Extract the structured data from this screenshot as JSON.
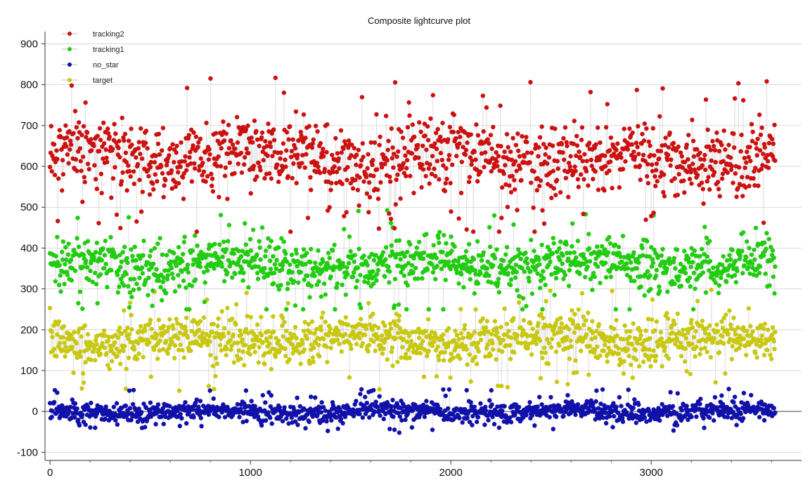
{
  "chart_data": {
    "type": "scatter",
    "title": "Composite lightcurve plot",
    "xlabel": "",
    "ylabel": "",
    "xlim": [
      -25,
      3750
    ],
    "ylim": [
      -120,
      930
    ],
    "x_ticks": [
      0,
      1000,
      2000,
      3000
    ],
    "y_ticks": [
      -100,
      0,
      100,
      200,
      300,
      400,
      500,
      600,
      700,
      800,
      900
    ],
    "x_tick_labels": [
      "0",
      "1000",
      "2000",
      "3000"
    ],
    "y_tick_labels": [
      "-100",
      "0",
      "100",
      "200",
      "300",
      "400",
      "500",
      "600",
      "700",
      "800",
      "900"
    ],
    "grid": true,
    "legend_position": "top-left",
    "n_points": 3620,
    "line_color": "#c8c8c8",
    "series": [
      {
        "name": "tracking2",
        "color": "#cc1111",
        "mean": 620,
        "spread": 80,
        "min": 440,
        "max": 905
      },
      {
        "name": "tracking1",
        "color": "#22cc11",
        "mean": 360,
        "spread": 55,
        "min": 250,
        "max": 530
      },
      {
        "name": "no_star",
        "color": "#1111aa",
        "mean": 0,
        "spread": 22,
        "min": -70,
        "max": 95
      },
      {
        "name": "target",
        "color": "#c8c811",
        "mean": 175,
        "spread": 50,
        "min": 40,
        "max": 300
      }
    ]
  }
}
